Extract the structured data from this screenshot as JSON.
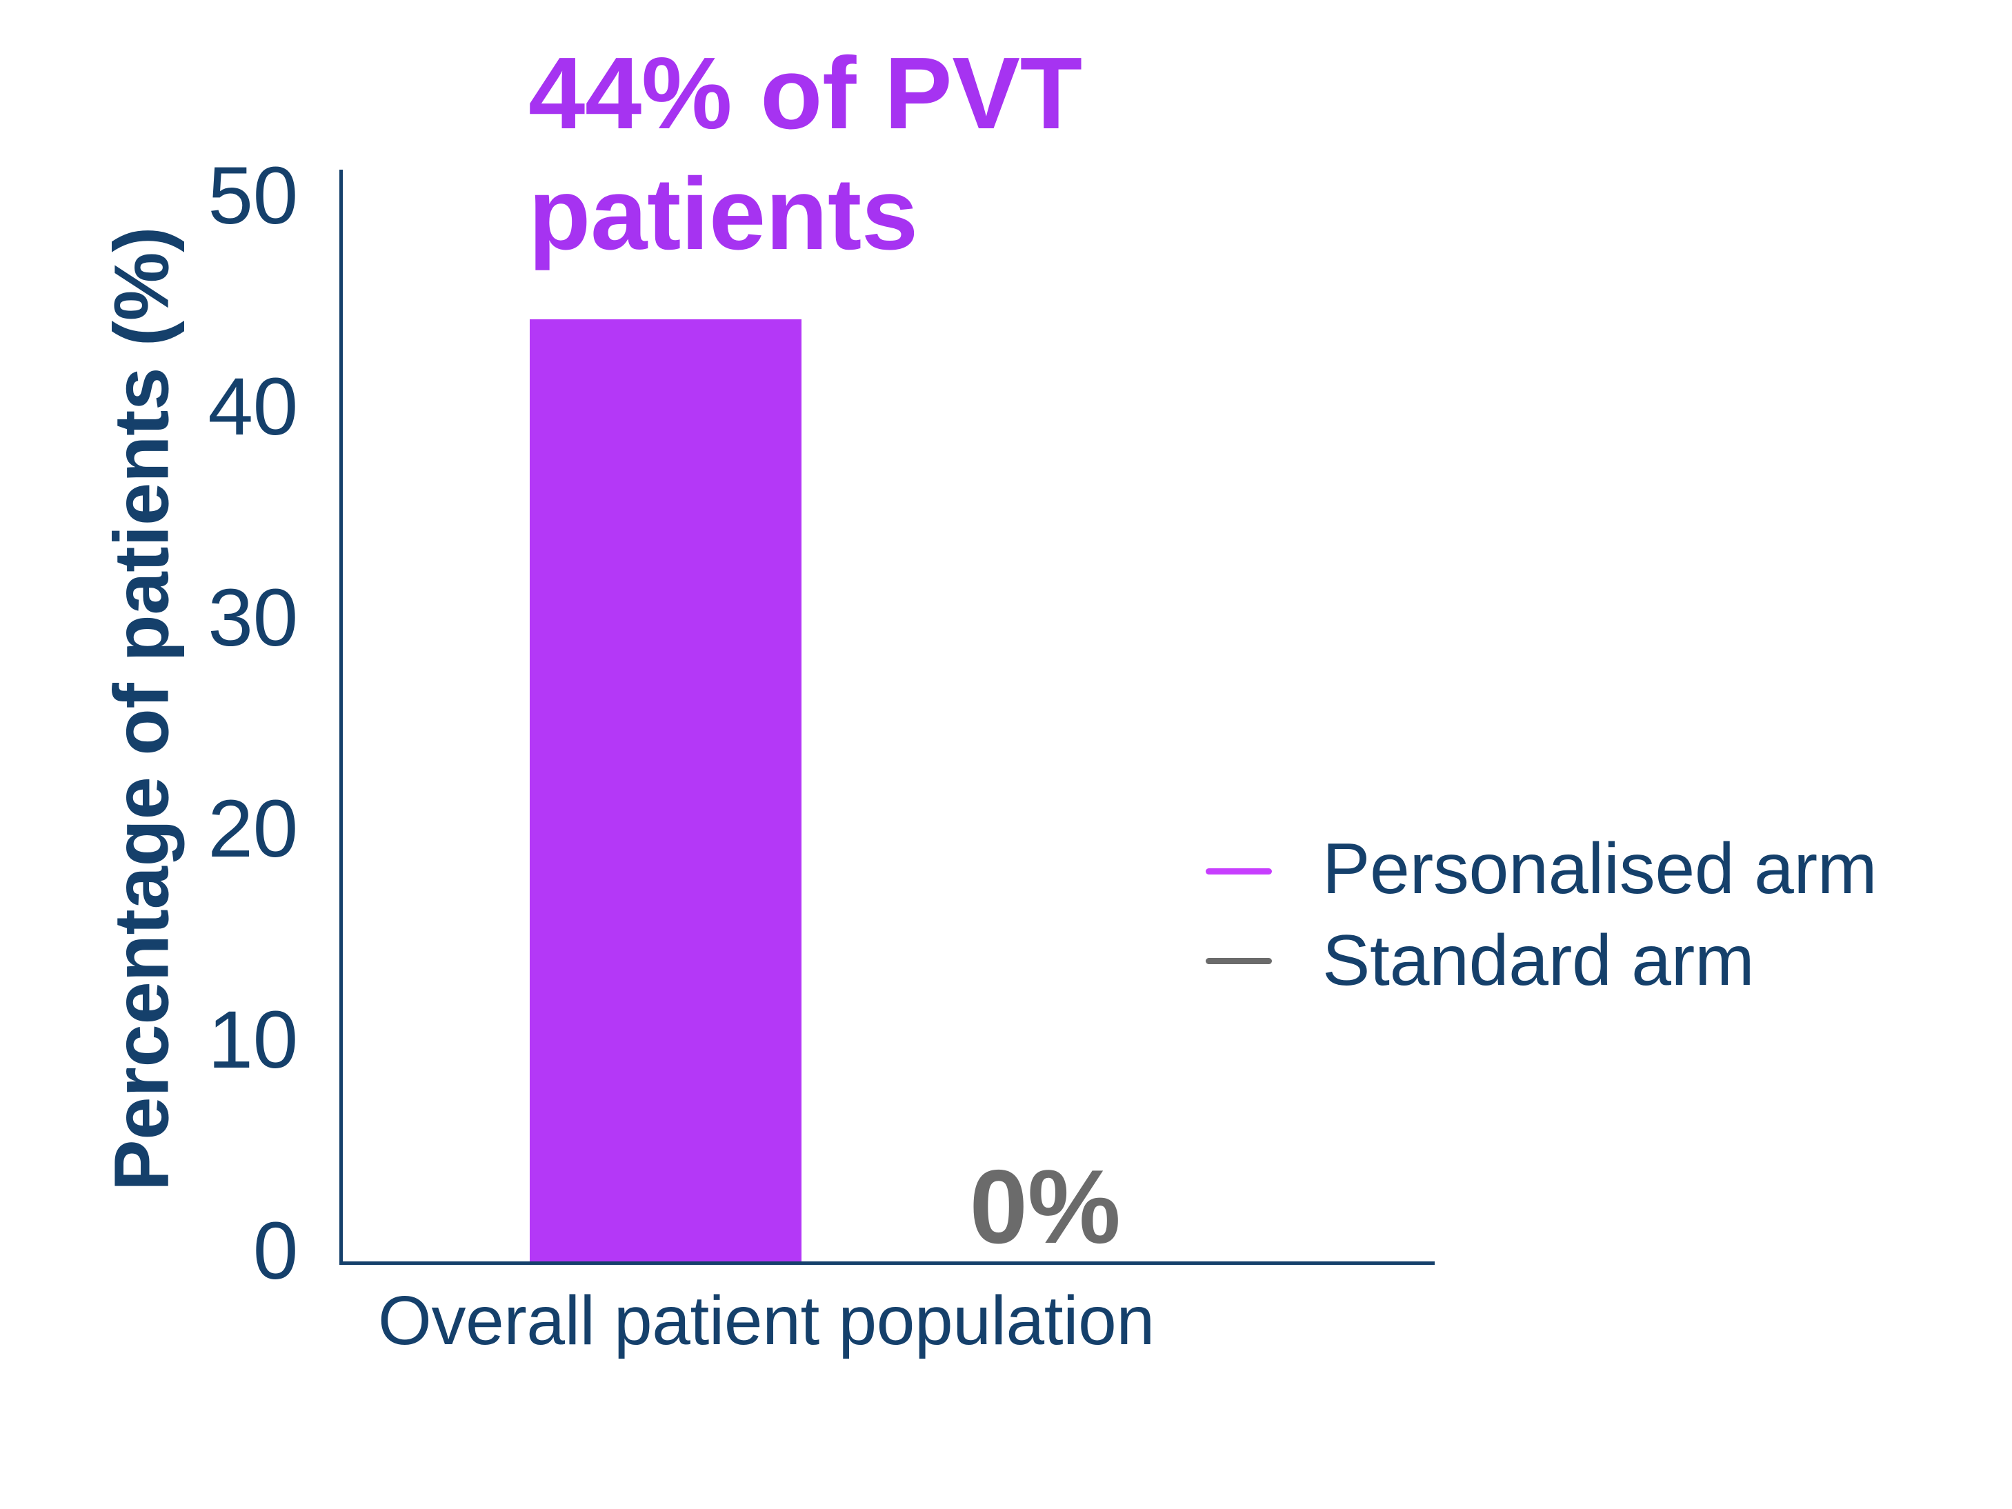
{
  "chart_data": {
    "type": "bar",
    "title": "44% of PVT patients",
    "ylabel": "Percentage of patients (%)",
    "categories": [
      "Overall patient population"
    ],
    "ylim": [
      0,
      50
    ],
    "yticks": [
      50,
      40,
      30,
      20,
      10,
      0
    ],
    "grid": false,
    "legend_position": "center-right",
    "series": [
      {
        "name": "Personalised arm",
        "values": [
          44
        ],
        "color": "#B438F7",
        "data_label": "44% of PVT patients"
      },
      {
        "name": "Standard arm",
        "values": [
          0
        ],
        "color": "#6B6B6B",
        "data_label": "0%"
      }
    ]
  },
  "title": {
    "line1": "44% of PVT",
    "line2": "patients"
  },
  "y_axis": {
    "label": "Percentage of patients (%)",
    "tick_labels": [
      "50",
      "40",
      "30",
      "20",
      "10",
      "0"
    ]
  },
  "x_axis": {
    "category_label": "Overall patient population"
  },
  "annotations": {
    "standard_arm_value": "0%"
  },
  "legend": {
    "items": [
      {
        "label": "Personalised arm",
        "swatch_color": "#C73EFE"
      },
      {
        "label": "Standard arm",
        "swatch_color": "#6B6B6B"
      }
    ]
  },
  "colors": {
    "navy_text": "#15406B",
    "title_purple": "#A633F1",
    "bar_purple": "#B438F7",
    "legend_purple": "#C73EFE",
    "value_gray": "#6B6B6B",
    "background": "#FFFFFF"
  }
}
